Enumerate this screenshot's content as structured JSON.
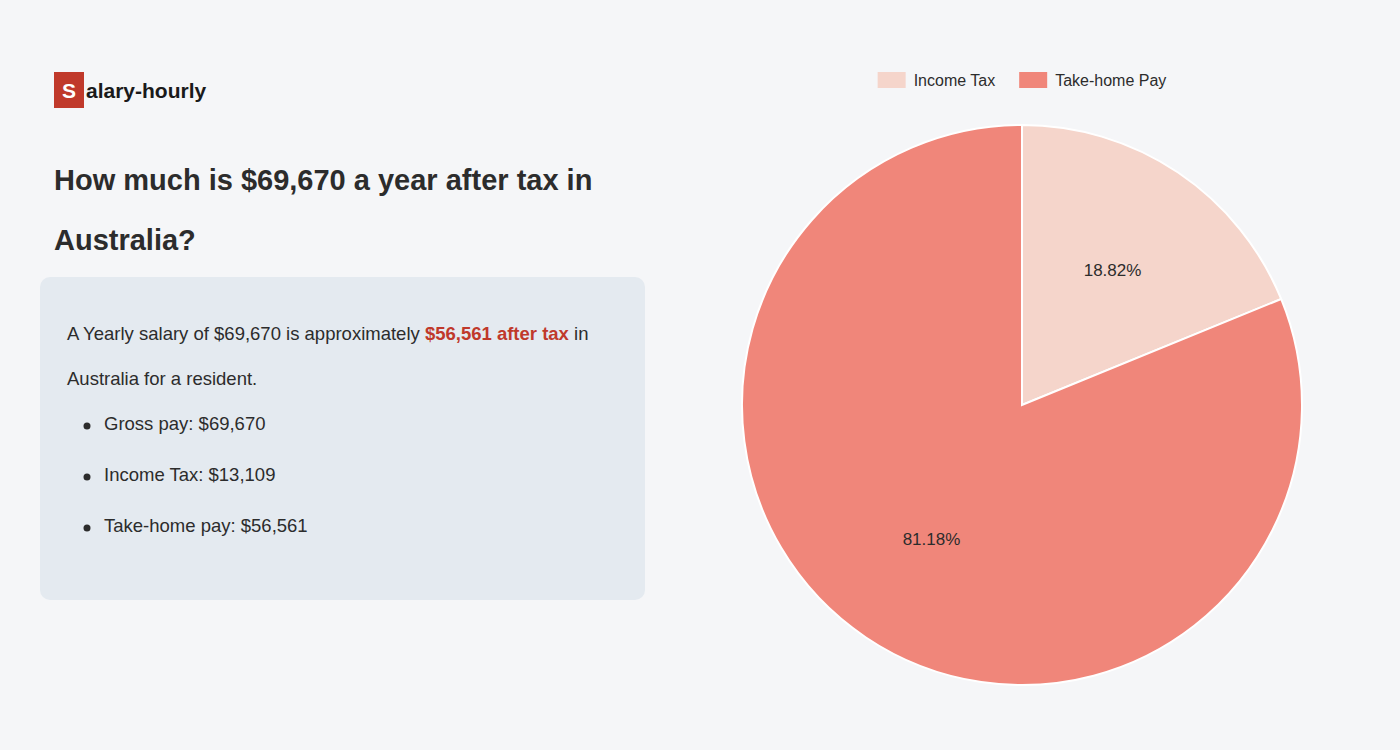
{
  "chart_data": {
    "type": "pie",
    "title": [
      "How much is $69,670 a year after tax in",
      "Australia?"
    ],
    "categories": [
      "Income Tax",
      "Take-home Pay"
    ],
    "values": [
      18.82,
      81.18
    ],
    "value_labels": [
      "18.82%",
      "81.18%"
    ],
    "colors": [
      "#f5d5cb",
      "#f0867a"
    ],
    "data_labels": true,
    "legend": "top",
    "annotations": [
      {
        "text": "S"
      },
      {
        "text": "alary-hourly"
      },
      {
        "text": "A Yearly salary of $69,670 is approximately "
      },
      {
        "text": "$56,561 after tax",
        "color": "#c0392b"
      },
      {
        "text": " in"
      },
      {
        "text": "Australia for a resident."
      },
      {
        "text": "Gross pay: $69,670"
      },
      {
        "text": "Income Tax: $13,109"
      },
      {
        "text": "Take-home pay: $56,561"
      }
    ]
  }
}
